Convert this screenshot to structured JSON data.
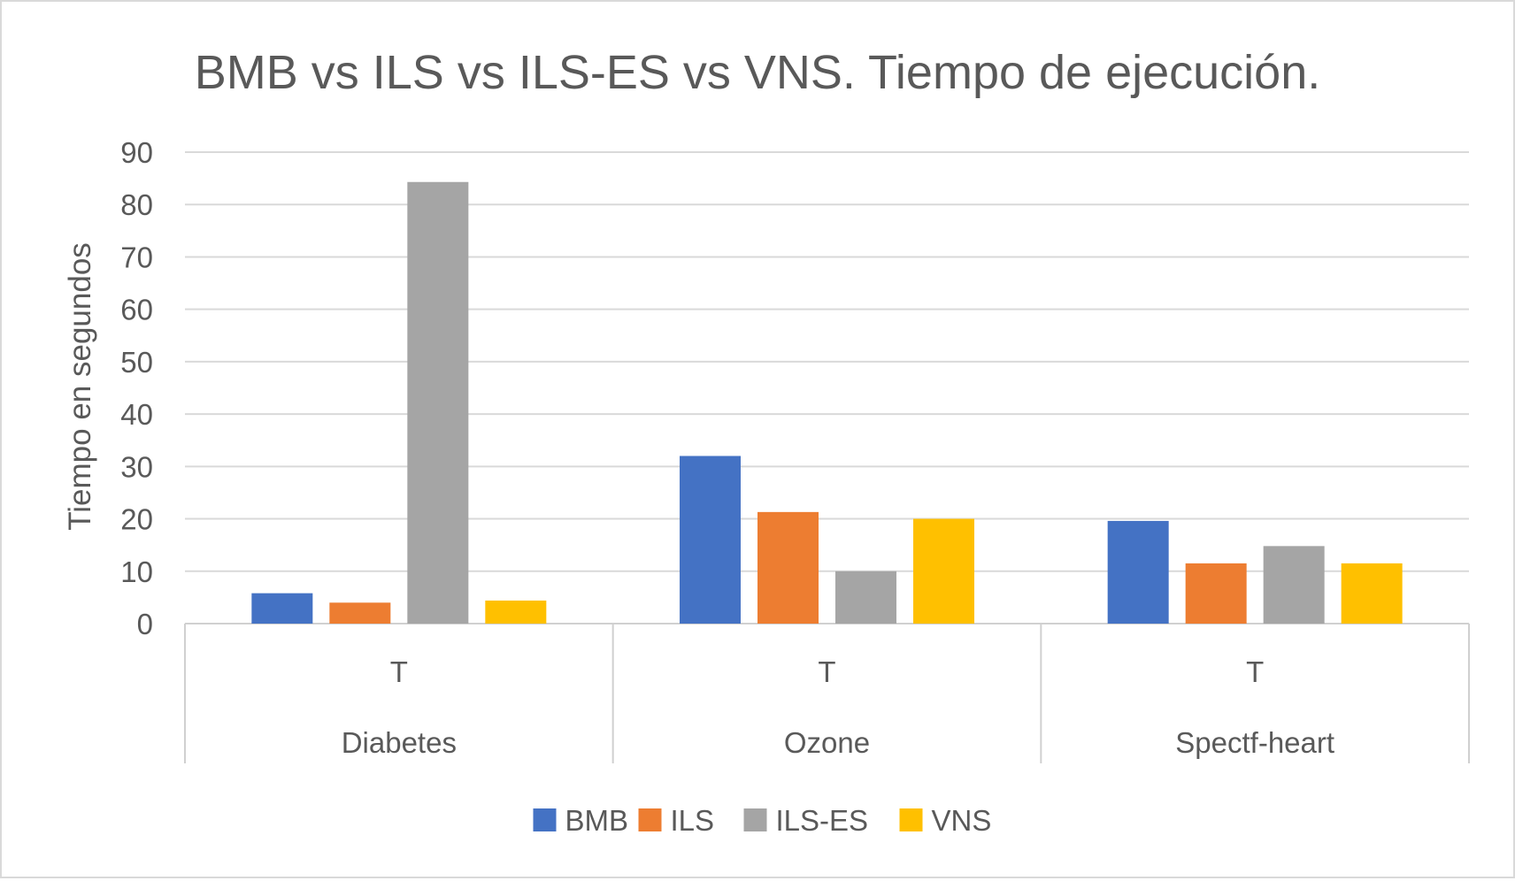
{
  "chart_data": {
    "type": "bar",
    "title": "BMB vs ILS vs ILS-ES vs VNS. Tiempo de ejecución.",
    "ylabel": "Tiempo en segundos",
    "xlabel": "",
    "ylim": [
      0,
      90
    ],
    "yticks": [
      0,
      10,
      20,
      30,
      40,
      50,
      60,
      70,
      80,
      90
    ],
    "grid": true,
    "legend_position": "bottom",
    "groups": [
      {
        "label": "Diabetes",
        "subcategories": [
          "T"
        ]
      },
      {
        "label": "Ozone",
        "subcategories": [
          "T"
        ]
      },
      {
        "label": "Spectf-heart",
        "subcategories": [
          "T"
        ]
      }
    ],
    "categories": [
      "Diabetes",
      "Ozone",
      "Spectf-heart"
    ],
    "series": [
      {
        "name": "BMB",
        "color": "#4472C4",
        "values": [
          5.8,
          32.0,
          19.6
        ]
      },
      {
        "name": "ILS",
        "color": "#ED7D31",
        "values": [
          4.0,
          21.3,
          11.5
        ]
      },
      {
        "name": "ILS-ES",
        "color": "#A5A5A5",
        "values": [
          84.3,
          10.0,
          14.8
        ]
      },
      {
        "name": "VNS",
        "color": "#FFC000",
        "values": [
          4.4,
          20.0,
          11.5
        ]
      }
    ]
  }
}
